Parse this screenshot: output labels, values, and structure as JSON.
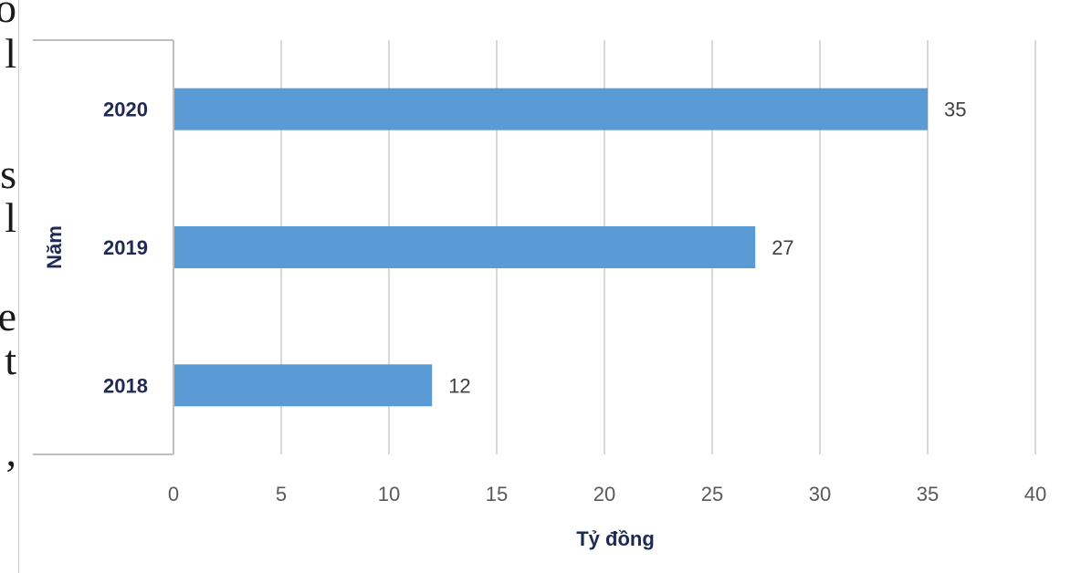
{
  "edge_glyphs": [
    {
      "char": "o"
    },
    {
      "char": "l"
    },
    {
      "char": "s"
    },
    {
      "char": "l"
    },
    {
      "char": "e"
    },
    {
      "char": "t"
    },
    {
      "char": ","
    }
  ],
  "colors": {
    "bar": "#5b9bd5",
    "grid": "#d9d9d9",
    "axis_line": "#bfbfbf",
    "text_dark": "#1f2a54",
    "tick_text": "#595959"
  },
  "chart_data": {
    "type": "bar",
    "orientation": "horizontal",
    "categories": [
      "2018",
      "2019",
      "2020"
    ],
    "values": [
      12,
      27,
      35
    ],
    "data_labels": [
      "12",
      "27",
      "35"
    ],
    "xlabel": "Tỷ đồng",
    "ylabel": "Năm",
    "xlim": [
      0,
      40
    ],
    "x_ticks": [
      "0",
      "5",
      "10",
      "15",
      "20",
      "25",
      "30",
      "35",
      "40"
    ],
    "grid": "vertical"
  }
}
